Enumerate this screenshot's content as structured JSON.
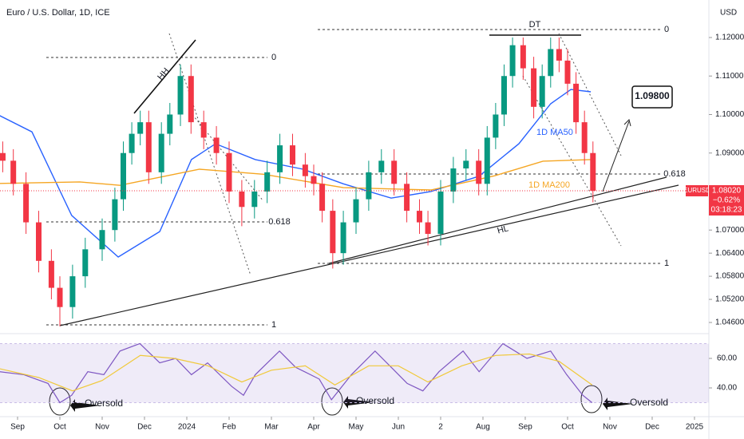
{
  "chart_data": [
    {
      "type": "candlestick",
      "title": "Euro / U.S. Dollar, 1D, ICE",
      "currency": "USD",
      "symbol": "EURUSD",
      "last_price_label": "1.08020",
      "change_label": "−0.62%",
      "countdown": "03:18:23",
      "up_color": "#089981",
      "down_color": "#f23645",
      "x": [
        -0.35,
        -0.1,
        0.2,
        0.5,
        0.8,
        1.0,
        1.3,
        1.6,
        2.0,
        2.3,
        2.5,
        2.7,
        2.9,
        3.1,
        3.4,
        3.6,
        3.85,
        4.1,
        4.4,
        4.7,
        5.0,
        5.3,
        5.6,
        5.9,
        6.2,
        6.5,
        6.8,
        7.0,
        7.2,
        7.45,
        7.7,
        8.0,
        8.3,
        8.6,
        8.9,
        9.2,
        9.5,
        9.7,
        10.0,
        10.3,
        10.6,
        10.9,
        11.1,
        11.3,
        11.5,
        11.7,
        11.95,
        12.2,
        12.4,
        12.6,
        12.8,
        13.0,
        13.2,
        13.4,
        13.6
      ],
      "open": [
        1.09,
        1.088,
        1.082,
        1.072,
        1.062,
        1.055,
        1.05,
        1.058,
        1.065,
        1.07,
        1.078,
        1.09,
        1.095,
        1.098,
        1.085,
        1.095,
        1.1,
        1.11,
        1.098,
        1.094,
        1.09,
        1.08,
        1.076,
        1.08,
        1.085,
        1.092,
        1.087,
        1.084,
        1.082,
        1.075,
        1.064,
        1.072,
        1.078,
        1.085,
        1.088,
        1.082,
        1.075,
        1.072,
        1.069,
        1.08,
        1.086,
        1.088,
        1.082,
        1.094,
        1.1,
        1.11,
        1.118,
        1.112,
        1.102,
        1.11,
        1.117,
        1.114,
        1.108,
        1.098,
        1.09
      ],
      "high": [
        1.093,
        1.091,
        1.085,
        1.075,
        1.065,
        1.058,
        1.061,
        1.068,
        1.073,
        1.081,
        1.093,
        1.098,
        1.101,
        1.101,
        1.098,
        1.103,
        1.113,
        1.113,
        1.101,
        1.097,
        1.093,
        1.083,
        1.083,
        1.088,
        1.095,
        1.095,
        1.09,
        1.087,
        1.085,
        1.078,
        1.075,
        1.081,
        1.088,
        1.091,
        1.091,
        1.085,
        1.078,
        1.075,
        1.083,
        1.089,
        1.091,
        1.091,
        1.097,
        1.103,
        1.113,
        1.12,
        1.12,
        1.115,
        1.113,
        1.12,
        1.12,
        1.117,
        1.111,
        1.101,
        1.093
      ],
      "low": [
        1.085,
        1.079,
        1.069,
        1.059,
        1.052,
        1.045,
        1.047,
        1.055,
        1.062,
        1.067,
        1.075,
        1.087,
        1.092,
        1.082,
        1.082,
        1.092,
        1.097,
        1.095,
        1.091,
        1.087,
        1.077,
        1.071,
        1.073,
        1.077,
        1.082,
        1.084,
        1.081,
        1.079,
        1.072,
        1.06,
        1.061,
        1.069,
        1.075,
        1.082,
        1.079,
        1.072,
        1.069,
        1.066,
        1.066,
        1.077,
        1.083,
        1.079,
        1.079,
        1.091,
        1.097,
        1.107,
        1.109,
        1.099,
        1.099,
        1.107,
        1.111,
        1.105,
        1.095,
        1.087,
        1.0772
      ],
      "close": [
        1.088,
        1.082,
        1.072,
        1.062,
        1.055,
        1.05,
        1.058,
        1.065,
        1.07,
        1.078,
        1.09,
        1.095,
        1.098,
        1.085,
        1.095,
        1.1,
        1.11,
        1.098,
        1.094,
        1.09,
        1.08,
        1.076,
        1.08,
        1.085,
        1.092,
        1.087,
        1.084,
        1.082,
        1.075,
        1.064,
        1.072,
        1.078,
        1.085,
        1.088,
        1.082,
        1.075,
        1.072,
        1.069,
        1.08,
        1.086,
        1.088,
        1.082,
        1.094,
        1.1,
        1.11,
        1.118,
        1.112,
        1.102,
        1.11,
        1.117,
        1.114,
        1.108,
        1.098,
        1.09,
        1.0802
      ],
      "series": [
        {
          "name": "1D MA50",
          "color": "#2962ff",
          "x": [
            -0.42,
            0.34,
            1.28,
            2.38,
            3.36,
            4.11,
            4.68,
            5.62,
            6.75,
            7.7,
            8.83,
            9.77,
            10.91,
            11.85,
            12.6,
            13.08,
            13.55
          ],
          "values": [
            1.0997,
            1.0955,
            1.0738,
            1.063,
            1.0696,
            1.0883,
            1.0924,
            1.0883,
            1.0858,
            1.082,
            1.0783,
            1.08,
            1.084,
            1.0924,
            1.1028,
            1.1065,
            1.1059
          ]
        },
        {
          "name": "1D MA200",
          "color": "#f5a623",
          "x": [
            -0.42,
            1.47,
            2.42,
            4.3,
            5.81,
            7.7,
            9.77,
            11.28,
            12.42,
            13.55
          ],
          "values": [
            1.0821,
            1.0825,
            1.0816,
            1.0858,
            1.0845,
            1.081,
            1.0804,
            1.0841,
            1.0879,
            1.0883
          ]
        }
      ],
      "annotations": [
        "HH",
        "DT",
        "HL",
        "0",
        "0.618",
        "1",
        "0",
        "0.618",
        "1",
        "1.09800"
      ],
      "xlim": [
        -0.415,
        16.34
      ],
      "xticks": [
        {
          "value": 0,
          "label": "Sep"
        },
        {
          "value": 1,
          "label": "Oct"
        },
        {
          "value": 2,
          "label": "Nov"
        },
        {
          "value": 3,
          "label": "Dec"
        },
        {
          "value": 4,
          "label": "2024"
        },
        {
          "value": 5,
          "label": "Feb"
        },
        {
          "value": 6,
          "label": "Mar"
        },
        {
          "value": 7,
          "label": "Apr"
        },
        {
          "value": 8,
          "label": "May"
        },
        {
          "value": 9,
          "label": "Jun"
        },
        {
          "value": 10,
          "label": "2"
        },
        {
          "value": 11,
          "label": "Aug"
        },
        {
          "value": 12,
          "label": "Sep"
        },
        {
          "value": 13,
          "label": "Oct"
        },
        {
          "value": 14,
          "label": "Nov"
        },
        {
          "value": 15,
          "label": "Dec"
        },
        {
          "value": 16,
          "label": "2025"
        }
      ],
      "ylim": [
        1.04372,
        1.12974
      ],
      "yticks": [
        {
          "value": 1.12,
          "label": "1.12000"
        },
        {
          "value": 1.11,
          "label": "1.11000"
        },
        {
          "value": 1.1,
          "label": "1.10000"
        },
        {
          "value": 1.09,
          "label": "1.09000"
        },
        {
          "value": 1.07,
          "label": "1.07000"
        },
        {
          "value": 1.064,
          "label": "1.06400"
        },
        {
          "value": 1.058,
          "label": "1.05800"
        },
        {
          "value": 1.052,
          "label": "1.05200"
        },
        {
          "value": 1.046,
          "label": "1.04600"
        }
      ]
    },
    {
      "type": "line",
      "series": [
        {
          "color": "#7e57c2",
          "x": [
            -0.42,
            0.15,
            0.72,
            1.0,
            1.28,
            1.66,
            2.04,
            2.42,
            2.89,
            3.36,
            3.74,
            4.11,
            4.49,
            5.06,
            5.34,
            5.62,
            6.19,
            6.57,
            7.13,
            7.42,
            7.89,
            8.45,
            8.83,
            9.21,
            9.58,
            9.96,
            10.53,
            10.91,
            11.47,
            12.04,
            12.6,
            12.98,
            13.36,
            13.58
          ],
          "values": [
            51,
            49,
            43,
            30,
            35,
            51,
            49,
            65,
            70,
            57,
            60,
            49,
            57,
            41,
            35,
            49,
            65,
            54,
            46,
            32,
            49,
            65,
            54,
            43,
            38,
            51,
            65,
            51,
            70,
            60,
            65,
            49,
            35,
            30
          ]
        },
        {
          "color": "#f0c93a",
          "x": [
            -0.42,
            0.5,
            1.3,
            2.0,
            2.9,
            3.7,
            4.5,
            5.3,
            6.0,
            6.8,
            7.5,
            8.3,
            9.0,
            9.7,
            10.5,
            11.3,
            12.1,
            12.8,
            13.58
          ],
          "values": [
            53,
            47,
            38,
            45,
            62,
            60,
            55,
            44,
            52,
            55,
            42,
            55,
            55,
            44,
            55,
            62,
            63,
            58,
            42
          ]
        }
      ],
      "band": [
        30,
        70
      ],
      "annotations": [
        "Oversold",
        "Oversold",
        "Oversold"
      ],
      "ylim": [
        21.6,
        75.7
      ],
      "yticks": [
        {
          "value": 60,
          "label": "60.00"
        },
        {
          "value": 40,
          "label": "40.00"
        }
      ]
    }
  ]
}
